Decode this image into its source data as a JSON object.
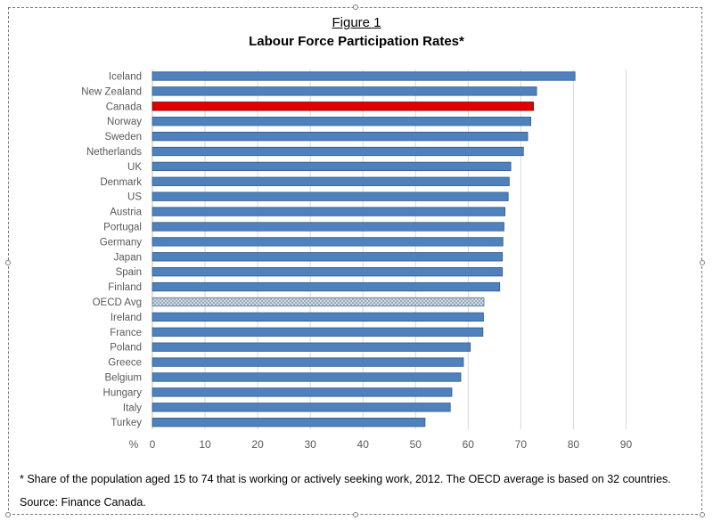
{
  "figure": {
    "label": "Figure 1",
    "title": "Labour Force Participation Rates*"
  },
  "footnote": "* Share of the population aged 15 to 74 that is working or actively seeking work, 2012.  The OECD average is based on 32 countries.",
  "source": "Source:  Finance Canada.",
  "chart_data": {
    "type": "bar",
    "orientation": "horizontal",
    "title": "Labour Force Participation Rates*",
    "xlabel": "%",
    "ylabel": "",
    "xlim": [
      0,
      90
    ],
    "x_ticks": [
      0,
      10,
      20,
      30,
      40,
      50,
      60,
      70,
      80,
      90
    ],
    "grid": true,
    "categories": [
      "Iceland",
      "New Zealand",
      "Canada",
      "Norway",
      "Sweden",
      "Netherlands",
      "UK",
      "Denmark",
      "US",
      "Austria",
      "Portugal",
      "Germany",
      "Japan",
      "Spain",
      "Finland",
      "OECD Avg",
      "Ireland",
      "France",
      "Poland",
      "Greece",
      "Belgium",
      "Hungary",
      "Italy",
      "Turkey"
    ],
    "values": [
      80.3,
      73.0,
      72.4,
      71.9,
      71.3,
      70.5,
      68.1,
      67.8,
      67.6,
      67.0,
      66.8,
      66.6,
      66.5,
      66.5,
      66.0,
      63.0,
      62.9,
      62.8,
      60.4,
      59.1,
      58.6,
      56.9,
      56.6,
      51.8
    ],
    "colors": {
      "default": "#4f81bd",
      "highlight": "#e00000",
      "average": "#c6d5e4",
      "gridline": "#d9d9d9",
      "axis_text": "#595959"
    },
    "highlight_category": "Canada",
    "average_category": "OECD Avg"
  }
}
